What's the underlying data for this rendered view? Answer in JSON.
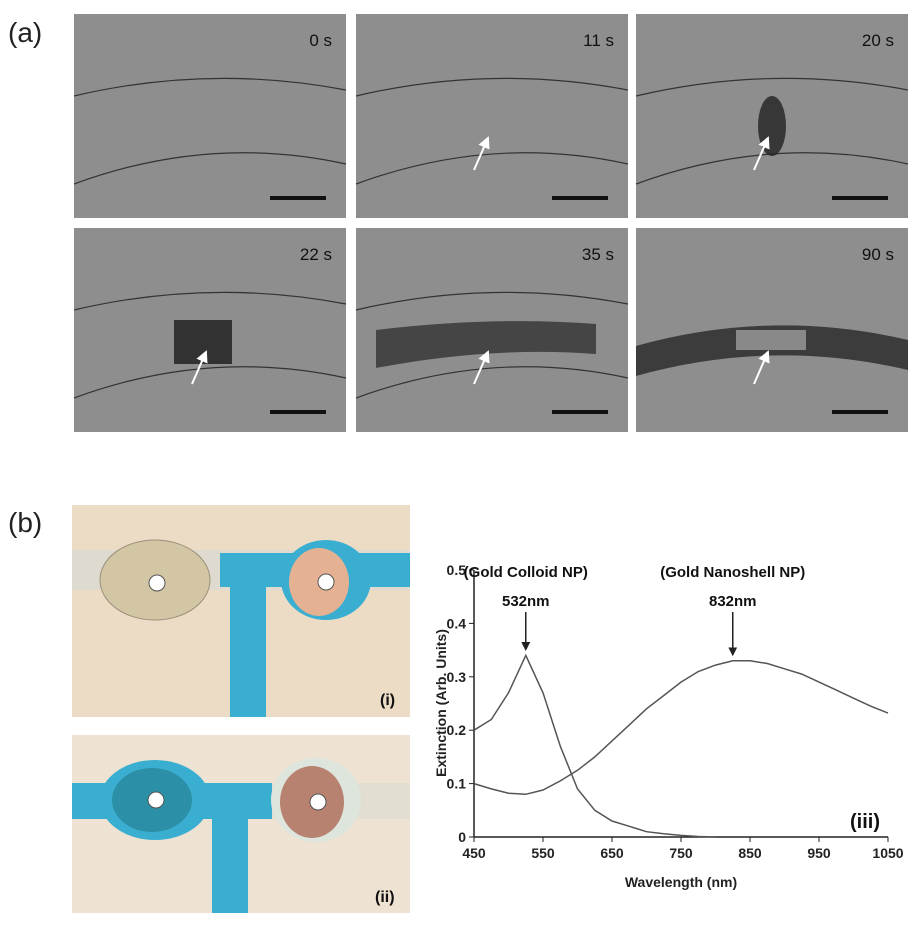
{
  "panel_a": {
    "label": "(a)",
    "frames": [
      {
        "time": "0 s"
      },
      {
        "time": "11 s"
      },
      {
        "time": "20 s"
      },
      {
        "time": "22 s"
      },
      {
        "time": "35 s"
      },
      {
        "time": "90 s"
      }
    ]
  },
  "panel_b": {
    "label": "(b)",
    "photos": [
      "(i)",
      "(ii)"
    ]
  },
  "chart_data": {
    "type": "line",
    "x_label": "Wavelength (nm)",
    "y_label": "Extinction (Arb. Units)",
    "panel_label": "(iii)",
    "annotations": [
      {
        "text": "(Gold Colloid NP)",
        "peak": "532nm"
      },
      {
        "text": "(Gold Nanoshell NP)",
        "peak": "832nm"
      }
    ],
    "x": [
      450,
      475,
      500,
      525,
      550,
      575,
      600,
      625,
      650,
      675,
      700,
      725,
      750,
      775,
      800,
      825,
      850,
      875,
      900,
      925,
      950,
      975,
      1000,
      1025,
      1050
    ],
    "series": [
      {
        "color": "#555555",
        "values": [
          0.2,
          0.22,
          0.27,
          0.34,
          0.27,
          0.17,
          0.09,
          0.05,
          0.03,
          0.02,
          0.01,
          0.006,
          0.003,
          0.001,
          0,
          null,
          null,
          null,
          null,
          null,
          null,
          null,
          null,
          null,
          null
        ]
      },
      {
        "color": "#555555",
        "values": [
          0.1,
          0.09,
          0.082,
          0.08,
          0.088,
          0.105,
          0.125,
          0.15,
          0.18,
          0.21,
          0.24,
          0.265,
          0.29,
          0.31,
          0.322,
          0.33,
          0.33,
          0.325,
          0.315,
          0.305,
          0.29,
          0.275,
          0.26,
          0.245,
          0.232
        ]
      }
    ],
    "xlim": [
      450,
      1050
    ],
    "xticks": [
      450,
      550,
      650,
      750,
      850,
      950,
      1050
    ],
    "ylim": [
      0,
      0.5
    ],
    "yticks": [
      0,
      0.1,
      0.2,
      0.3,
      0.4,
      0.5
    ]
  }
}
